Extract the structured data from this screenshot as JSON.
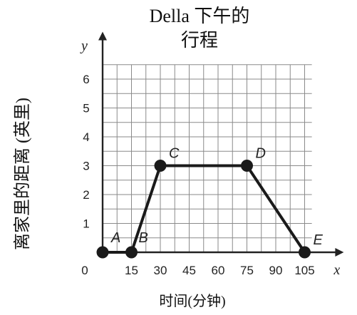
{
  "chart_data": {
    "type": "line",
    "title_lines": [
      "Della 下午的",
      "行程"
    ],
    "xlabel": "时间(分钟)",
    "ylabel": "离家里的距离 (英里)",
    "x_axis_name": "x",
    "y_axis_name": "y",
    "x_ticks": [
      0,
      15,
      30,
      45,
      60,
      75,
      90,
      105
    ],
    "x_tick_labels": [
      "0",
      "15",
      "30",
      "45",
      "60",
      "75",
      "90",
      "105"
    ],
    "y_ticks": [
      1,
      2,
      3,
      4,
      5,
      6
    ],
    "y_tick_labels": [
      "1",
      "2",
      "3",
      "4",
      "5",
      "6"
    ],
    "xlim": [
      0,
      112
    ],
    "ylim": [
      0,
      6.9
    ],
    "grid": true,
    "points": [
      {
        "label": "A",
        "x": 0,
        "y": 0
      },
      {
        "label": "B",
        "x": 15,
        "y": 0
      },
      {
        "label": "C",
        "x": 30,
        "y": 3
      },
      {
        "label": "D",
        "x": 75,
        "y": 3
      },
      {
        "label": "E",
        "x": 105,
        "y": 0
      }
    ]
  }
}
